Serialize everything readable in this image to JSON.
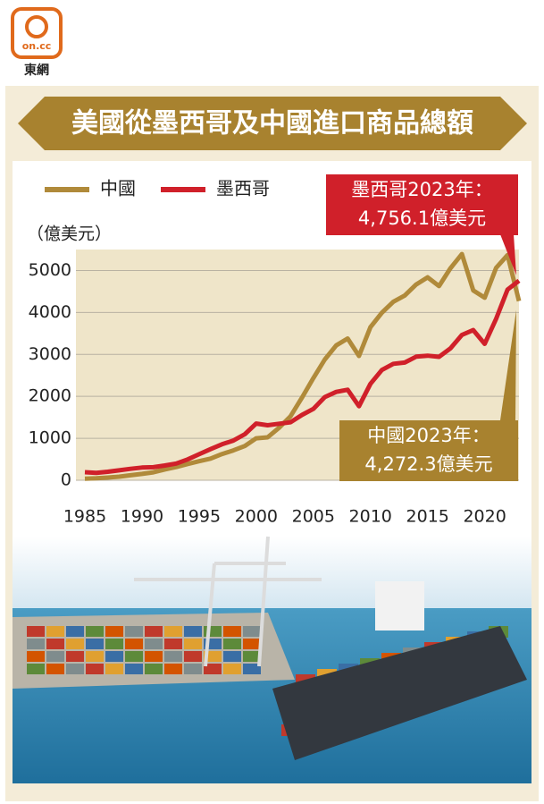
{
  "logo": {
    "mark": "on.cc",
    "name": "東網"
  },
  "chart_data": {
    "type": "line",
    "title": "美國從墨西哥及中國進口商品總額",
    "y_label": "（億美元）",
    "x": [
      1985,
      1986,
      1987,
      1988,
      1989,
      1990,
      1991,
      1992,
      1993,
      1994,
      1995,
      1996,
      1997,
      1998,
      1999,
      2000,
      2001,
      2002,
      2003,
      2004,
      2005,
      2006,
      2007,
      2008,
      2009,
      2010,
      2011,
      2012,
      2013,
      2014,
      2015,
      2016,
      2017,
      2018,
      2019,
      2020,
      2021,
      2022,
      2023
    ],
    "xlim": [
      1985,
      2023
    ],
    "xticks": [
      1985,
      1990,
      1995,
      2000,
      2005,
      2010,
      2015,
      2020
    ],
    "ylim": [
      0,
      5500
    ],
    "yticks": [
      0,
      1000,
      2000,
      3000,
      4000,
      5000
    ],
    "grid": true,
    "series": [
      {
        "name": "中國",
        "color": "#b08a3a",
        "values": [
          39,
          47,
          63,
          85,
          120,
          152,
          190,
          257,
          315,
          387,
          455,
          515,
          625,
          712,
          817,
          1000,
          1023,
          1252,
          1524,
          1967,
          2435,
          2878,
          3215,
          3378,
          2964,
          3649,
          3993,
          4256,
          4404,
          4667,
          4837,
          4628,
          5054,
          5392,
          4524,
          4352,
          5062,
          5368,
          4272.3
        ]
      },
      {
        "name": "墨西哥",
        "color": "#d0202a",
        "values": [
          192,
          176,
          203,
          236,
          272,
          302,
          312,
          351,
          399,
          496,
          620,
          741,
          857,
          947,
          1098,
          1352,
          1312,
          1348,
          1381,
          1557,
          1701,
          1983,
          2106,
          2157,
          1766,
          2298,
          2629,
          2776,
          2806,
          2946,
          2969,
          2942,
          3145,
          3465,
          3580,
          3251,
          3848,
          4546,
          4756.1
        ]
      }
    ],
    "annotations": [
      [
        "墨西哥2023年：",
        "4,756.1億美元"
      ],
      [
        "中國2023年：",
        "4,272.3億美元"
      ]
    ]
  }
}
